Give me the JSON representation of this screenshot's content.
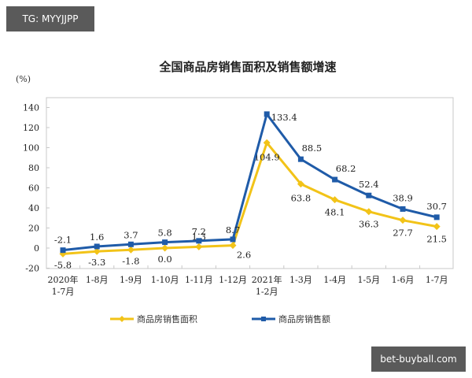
{
  "watermarks": {
    "top_left": "TG: MYYJJPP",
    "bottom_right": "bet-buyball.com"
  },
  "colors": {
    "area_series": "#f2c318",
    "sales_series": "#1f5ba8",
    "axis": "#bfbfbf",
    "text": "#222222"
  },
  "chart_data": {
    "type": "line",
    "title": "全国商品房销售面积及销售额增速",
    "ylabel": "(%)",
    "xlabel": "",
    "ylim": [
      -20,
      140
    ],
    "yticks": [
      -20,
      0,
      20,
      40,
      60,
      80,
      100,
      120,
      140
    ],
    "grid": false,
    "legend_position": "bottom",
    "categories": [
      "2020年\n1-7月",
      "1-8月",
      "1-9月",
      "1-10月",
      "1-11月",
      "1-12月",
      "2021年\n1-2月",
      "1-3月",
      "1-4月",
      "1-5月",
      "1-6月",
      "1-7月"
    ],
    "series": [
      {
        "name": "商品房销售面积",
        "color": "#f2c318",
        "marker": "diamond",
        "values": [
          -5.8,
          -3.3,
          -1.8,
          0.0,
          1.3,
          2.6,
          104.9,
          63.8,
          48.1,
          36.3,
          27.7,
          21.5
        ],
        "labels": [
          "-5.8",
          "-3.3",
          "-1.8",
          "0.0",
          "1.3",
          "2.6",
          "104.9",
          "63.8",
          "48.1",
          "36.3",
          "27.7",
          "21.5"
        ]
      },
      {
        "name": "商品房销售额",
        "color": "#1f5ba8",
        "marker": "square",
        "values": [
          -2.1,
          1.6,
          3.7,
          5.8,
          7.2,
          8.7,
          133.4,
          88.5,
          68.2,
          52.4,
          38.9,
          30.7
        ],
        "labels": [
          "-2.1",
          "1.6",
          "3.7",
          "5.8",
          "7.2",
          "8.7",
          "133.4",
          "88.5",
          "68.2",
          "52.4",
          "38.9",
          "30.7"
        ]
      }
    ]
  }
}
